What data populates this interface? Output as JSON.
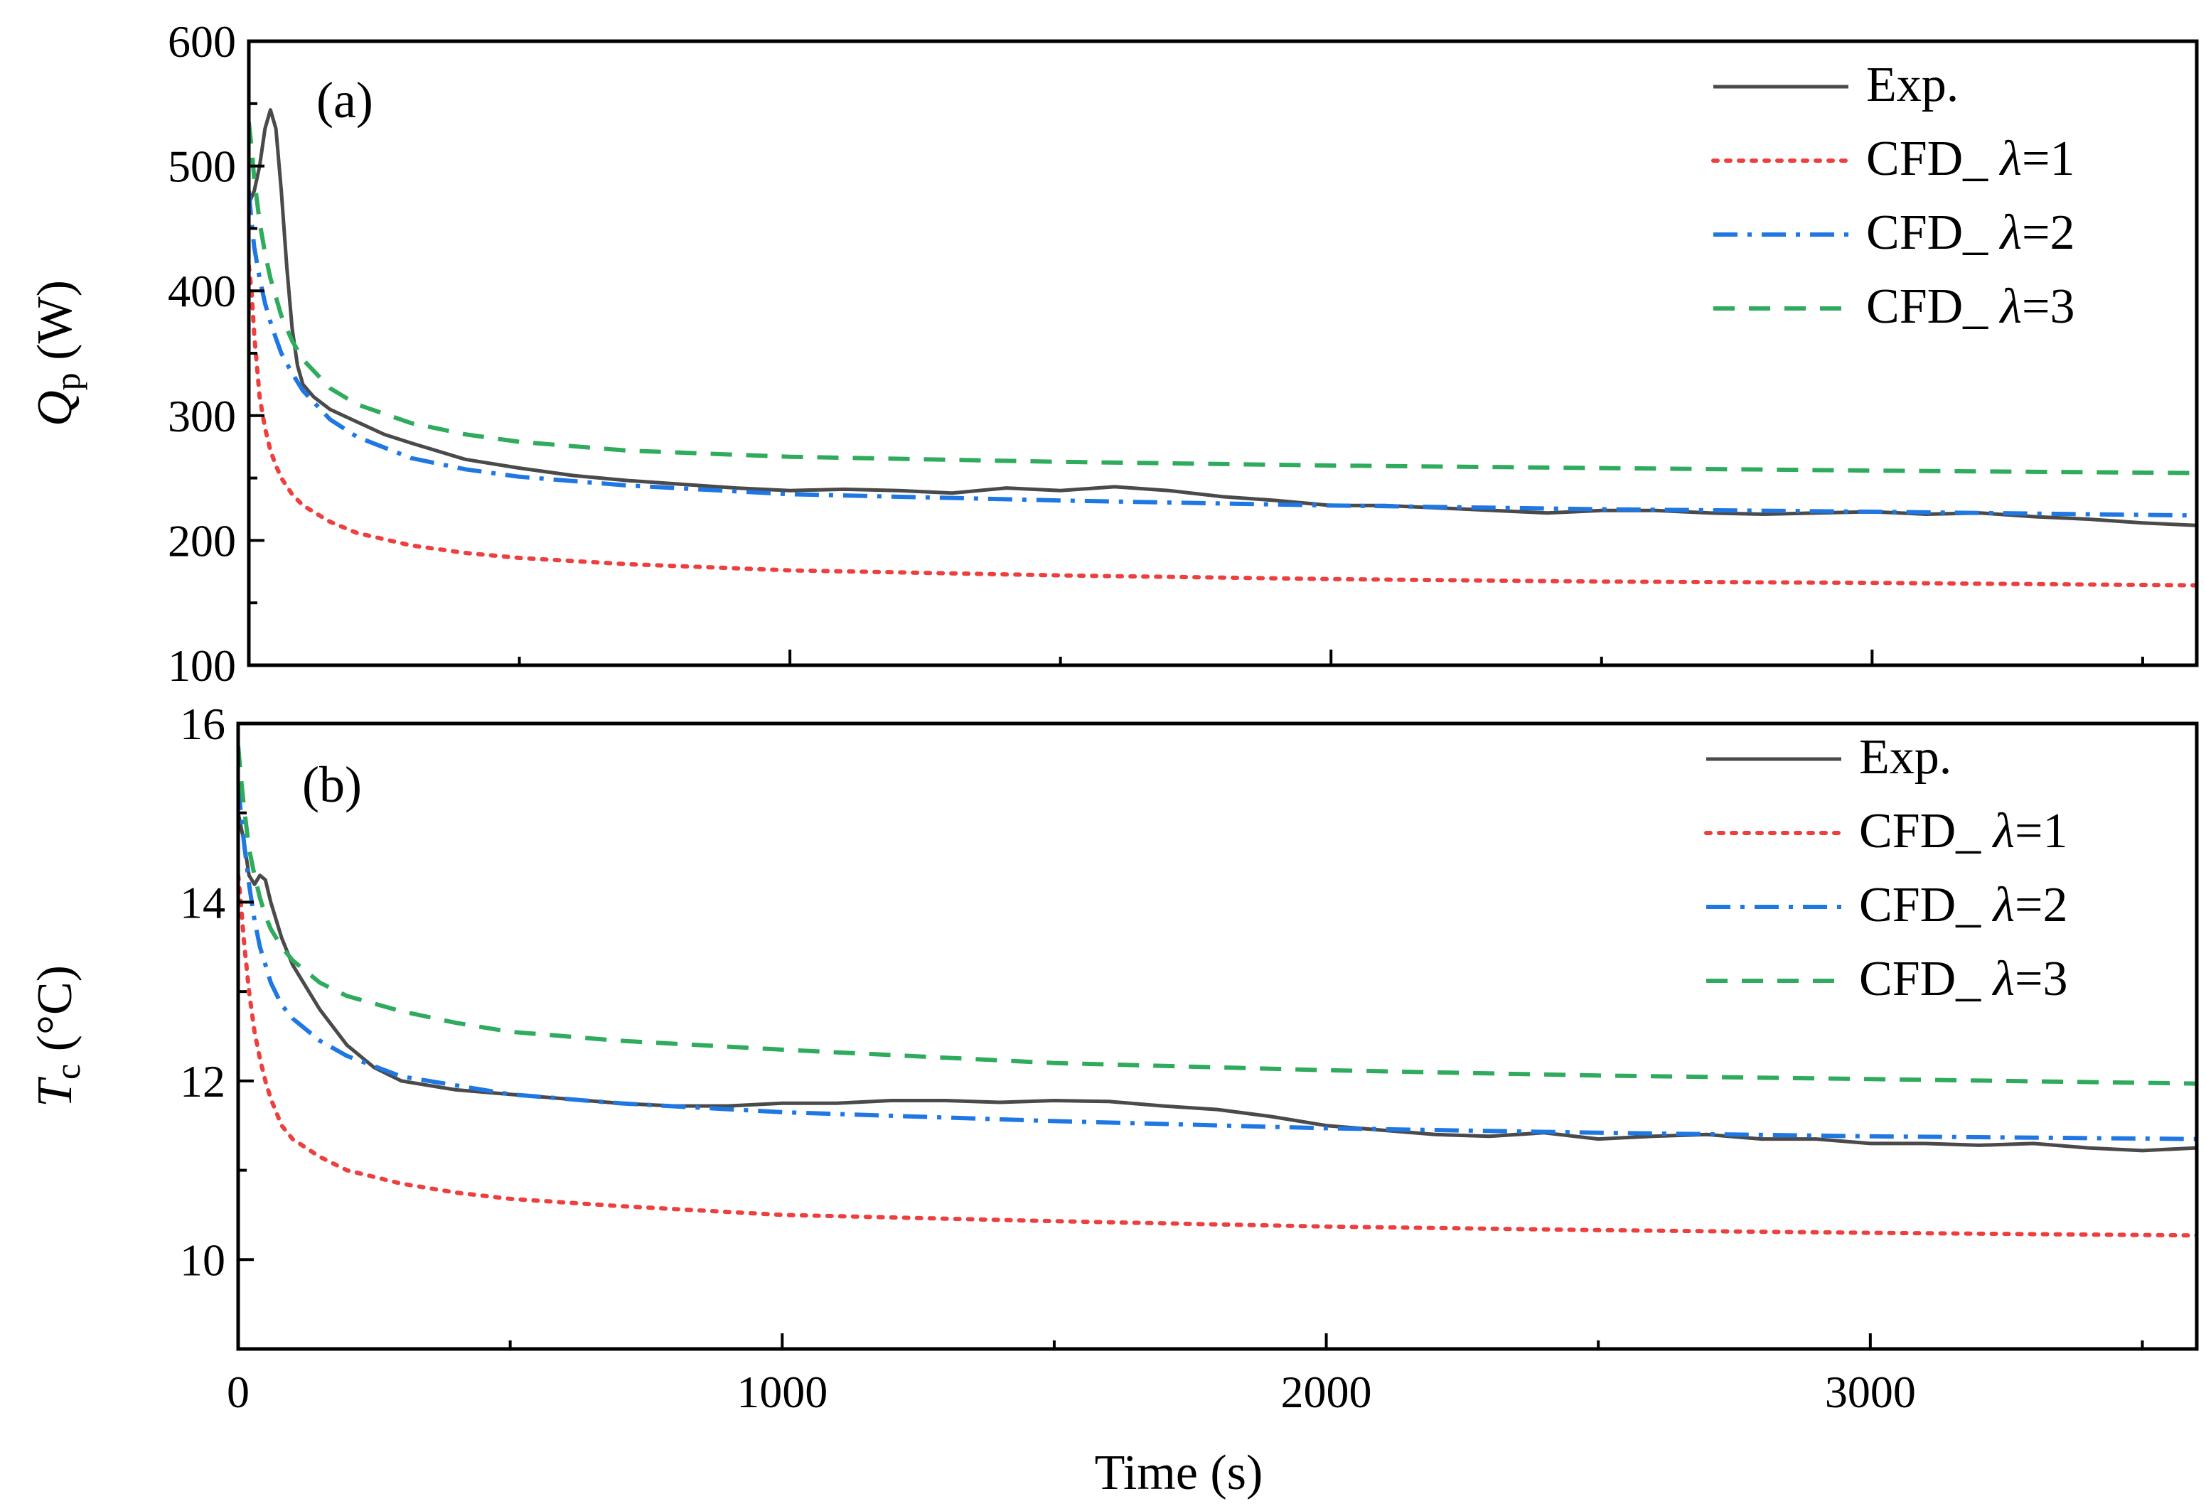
{
  "figure": {
    "xlabel": "Time (s)"
  },
  "chart_data": [
    {
      "type": "line",
      "panel_label": "(a)",
      "ylabel": {
        "symbol": "Q",
        "subscript": "p",
        "unit": " (W)"
      },
      "xlabel": "Time (s)",
      "xlim": [
        0,
        3600
      ],
      "ylim": [
        100,
        600
      ],
      "xticks": [
        0,
        1000,
        2000,
        3000
      ],
      "yticks": [
        100,
        200,
        300,
        400,
        500,
        600
      ],
      "legend_position": "top-right",
      "series": [
        {
          "name": "Exp.",
          "legend": {
            "prefix": "Exp.",
            "symbol": "",
            "suffix": ""
          },
          "color": "#4a4a4a",
          "style": "solid",
          "x": [
            0,
            10,
            20,
            30,
            40,
            50,
            60,
            70,
            80,
            90,
            100,
            110,
            120,
            150,
            200,
            250,
            300,
            400,
            500,
            600,
            700,
            800,
            900,
            1000,
            1100,
            1200,
            1300,
            1400,
            1500,
            1600,
            1700,
            1800,
            1900,
            2000,
            2100,
            2200,
            2300,
            2400,
            2500,
            2600,
            2700,
            2800,
            2900,
            3000,
            3100,
            3200,
            3300,
            3400,
            3500,
            3600
          ],
          "y": [
            470,
            480,
            500,
            530,
            545,
            530,
            480,
            420,
            370,
            340,
            325,
            320,
            315,
            305,
            295,
            285,
            278,
            265,
            258,
            252,
            248,
            245,
            242,
            240,
            241,
            240,
            238,
            242,
            240,
            243,
            240,
            235,
            232,
            228,
            228,
            226,
            224,
            222,
            224,
            224,
            222,
            221,
            222,
            223,
            221,
            222,
            219,
            217,
            214,
            212
          ]
        },
        {
          "name": "CFD_ λ=1",
          "legend": {
            "prefix": "CFD_ ",
            "symbol": "λ",
            "suffix": "=1"
          },
          "color": "#ee3f3f",
          "style": "dotted",
          "x": [
            0,
            5,
            10,
            20,
            30,
            40,
            50,
            60,
            80,
            100,
            150,
            200,
            300,
            400,
            500,
            700,
            1000,
            1500,
            2000,
            2500,
            3000,
            3600
          ],
          "y": [
            420,
            400,
            365,
            315,
            290,
            272,
            260,
            250,
            237,
            228,
            215,
            206,
            196,
            190,
            186,
            181,
            176,
            172,
            169,
            167,
            166,
            164
          ]
        },
        {
          "name": "CFD_ λ=2",
          "legend": {
            "prefix": "CFD_ ",
            "symbol": "λ",
            "suffix": "=2"
          },
          "color": "#1f77e4",
          "style": "dashdot",
          "x": [
            0,
            5,
            10,
            20,
            30,
            40,
            50,
            60,
            80,
            100,
            150,
            200,
            300,
            400,
            500,
            700,
            1000,
            1500,
            2000,
            2500,
            3000,
            3600
          ],
          "y": [
            480,
            455,
            435,
            410,
            390,
            375,
            362,
            350,
            334,
            320,
            297,
            283,
            266,
            257,
            251,
            244,
            237,
            232,
            228,
            225,
            223,
            220
          ]
        },
        {
          "name": "CFD_ λ=3",
          "legend": {
            "prefix": "CFD_ ",
            "symbol": "λ",
            "suffix": "=3"
          },
          "color": "#2eab5c",
          "style": "dashed",
          "x": [
            0,
            5,
            10,
            20,
            30,
            40,
            50,
            60,
            80,
            100,
            150,
            200,
            300,
            400,
            500,
            700,
            1000,
            1500,
            2000,
            2500,
            3000,
            3600
          ],
          "y": [
            535,
            515,
            490,
            455,
            430,
            410,
            395,
            380,
            360,
            345,
            322,
            309,
            294,
            285,
            279,
            272,
            267,
            263,
            260,
            258,
            256,
            254
          ]
        }
      ]
    },
    {
      "type": "line",
      "panel_label": "(b)",
      "ylabel": {
        "symbol": "T",
        "subscript": "c",
        "unit": " (°C)"
      },
      "xlabel": "Time (s)",
      "xlim": [
        0,
        3600
      ],
      "ylim": [
        9,
        16
      ],
      "xticks": [
        0,
        1000,
        2000,
        3000
      ],
      "yticks": [
        10,
        12,
        14,
        16
      ],
      "legend_position": "top-right",
      "series": [
        {
          "name": "Exp.",
          "legend": {
            "prefix": "Exp.",
            "symbol": "",
            "suffix": ""
          },
          "color": "#4a4a4a",
          "style": "solid",
          "x": [
            0,
            10,
            20,
            30,
            40,
            50,
            60,
            80,
            100,
            120,
            150,
            200,
            250,
            300,
            400,
            500,
            600,
            700,
            800,
            900,
            1000,
            1100,
            1200,
            1300,
            1400,
            1500,
            1600,
            1700,
            1800,
            1900,
            2000,
            2100,
            2200,
            2300,
            2400,
            2500,
            2600,
            2700,
            2800,
            2900,
            3000,
            3100,
            3200,
            3300,
            3400,
            3500,
            3600
          ],
          "y": [
            15.0,
            14.7,
            14.3,
            14.2,
            14.3,
            14.25,
            14.0,
            13.6,
            13.3,
            13.1,
            12.8,
            12.4,
            12.15,
            12.0,
            11.9,
            11.85,
            11.8,
            11.75,
            11.72,
            11.72,
            11.75,
            11.75,
            11.78,
            11.78,
            11.76,
            11.78,
            11.77,
            11.72,
            11.68,
            11.6,
            11.5,
            11.45,
            11.4,
            11.38,
            11.42,
            11.35,
            11.38,
            11.4,
            11.35,
            11.35,
            11.3,
            11.3,
            11.28,
            11.3,
            11.25,
            11.22,
            11.25
          ]
        },
        {
          "name": "CFD_ λ=1",
          "legend": {
            "prefix": "CFD_ ",
            "symbol": "λ",
            "suffix": "=1"
          },
          "color": "#ee3f3f",
          "style": "dotted",
          "x": [
            0,
            5,
            10,
            20,
            30,
            40,
            50,
            60,
            80,
            100,
            150,
            200,
            300,
            400,
            500,
            700,
            1000,
            1500,
            2000,
            2500,
            3000,
            3600
          ],
          "y": [
            14.3,
            14.0,
            13.6,
            13.0,
            12.55,
            12.25,
            12.0,
            11.8,
            11.5,
            11.35,
            11.15,
            11.0,
            10.85,
            10.75,
            10.68,
            10.6,
            10.5,
            10.43,
            10.37,
            10.33,
            10.3,
            10.27
          ]
        },
        {
          "name": "CFD_ λ=2",
          "legend": {
            "prefix": "CFD_ ",
            "symbol": "λ",
            "suffix": "=2"
          },
          "color": "#1f77e4",
          "style": "dashdot",
          "x": [
            0,
            5,
            10,
            20,
            30,
            40,
            50,
            60,
            80,
            100,
            150,
            200,
            300,
            400,
            500,
            700,
            1000,
            1500,
            2000,
            2500,
            3000,
            3600
          ],
          "y": [
            15.3,
            15.0,
            14.7,
            14.2,
            13.8,
            13.5,
            13.3,
            13.1,
            12.85,
            12.7,
            12.45,
            12.28,
            12.05,
            11.95,
            11.85,
            11.75,
            11.65,
            11.55,
            11.47,
            11.42,
            11.38,
            11.35
          ]
        },
        {
          "name": "CFD_ λ=3",
          "legend": {
            "prefix": "CFD_ ",
            "symbol": "λ",
            "suffix": "=3"
          },
          "color": "#2eab5c",
          "style": "dashed",
          "x": [
            0,
            5,
            10,
            20,
            30,
            40,
            50,
            60,
            80,
            100,
            150,
            200,
            300,
            400,
            500,
            700,
            1000,
            1500,
            2000,
            2500,
            3000,
            3600
          ],
          "y": [
            15.75,
            15.4,
            15.1,
            14.6,
            14.3,
            14.05,
            13.85,
            13.7,
            13.5,
            13.35,
            13.1,
            12.95,
            12.78,
            12.65,
            12.55,
            12.45,
            12.35,
            12.2,
            12.12,
            12.06,
            12.02,
            11.97
          ]
        }
      ]
    }
  ]
}
